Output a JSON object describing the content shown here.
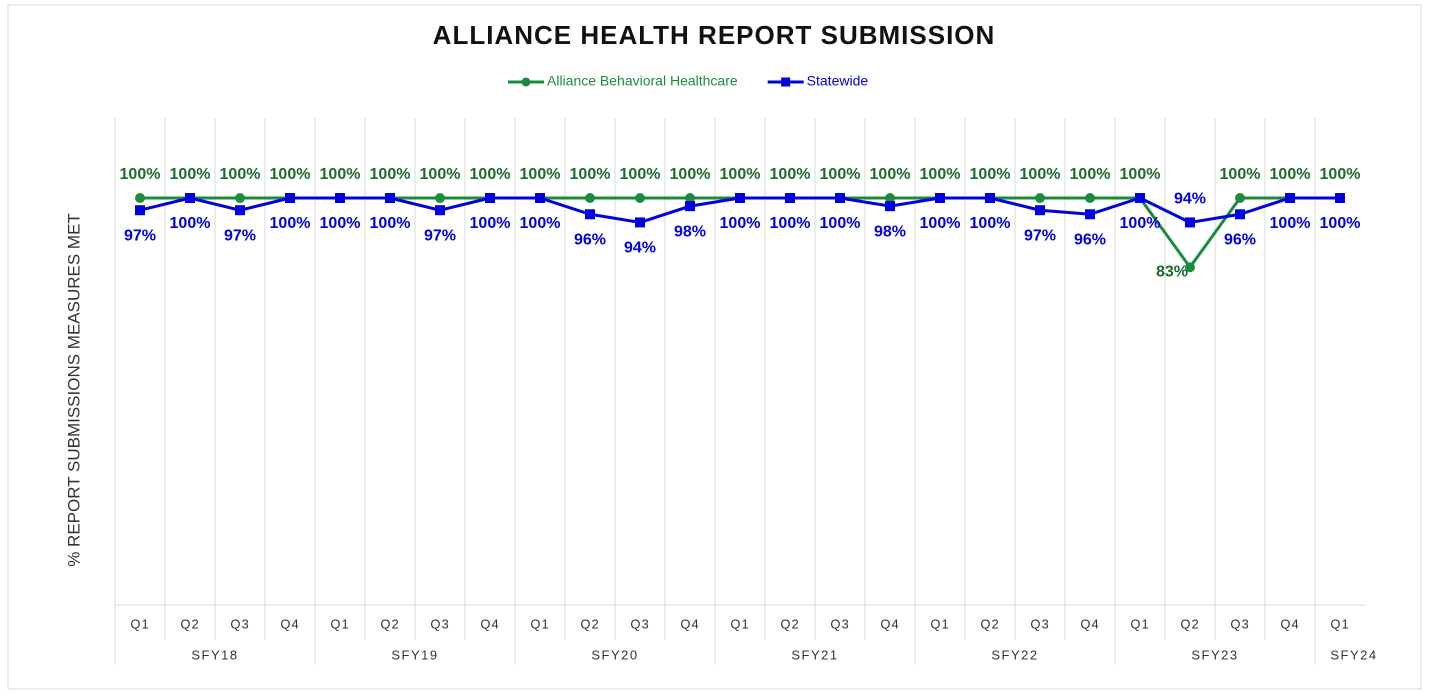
{
  "chart_data": {
    "type": "line",
    "title": "ALLIANCE HEALTH REPORT SUBMISSION",
    "y_label": "% REPORT SUBMISSIONS MEASURES MET",
    "groups": [
      {
        "name": "SFY18",
        "categories": [
          "Q1",
          "Q2",
          "Q3",
          "Q4"
        ]
      },
      {
        "name": "SFY19",
        "categories": [
          "Q1",
          "Q2",
          "Q3",
          "Q4"
        ]
      },
      {
        "name": "SFY20",
        "categories": [
          "Q1",
          "Q2",
          "Q3",
          "Q4"
        ]
      },
      {
        "name": "SFY21",
        "categories": [
          "Q1",
          "Q2",
          "Q3",
          "Q4"
        ]
      },
      {
        "name": "SFY22",
        "categories": [
          "Q1",
          "Q2",
          "Q3",
          "Q4"
        ]
      },
      {
        "name": "SFY23",
        "categories": [
          "Q1",
          "Q2",
          "Q3",
          "Q4"
        ]
      },
      {
        "name": "SFY24",
        "categories": [
          "Q1"
        ]
      }
    ],
    "ylim": [
      0,
      100
    ],
    "series": [
      {
        "name": "Alliance Behavioral Healthcare",
        "color": "#1a8c3c",
        "label_color": "#1e6b2e",
        "marker": "circle",
        "values": [
          100,
          100,
          100,
          100,
          100,
          100,
          100,
          100,
          100,
          100,
          100,
          100,
          100,
          100,
          100,
          100,
          100,
          100,
          100,
          100,
          100,
          83,
          100,
          100,
          100
        ],
        "value_labels": [
          "100%",
          "100%",
          "100%",
          "100%",
          "100%",
          "100%",
          "100%",
          "100%",
          "100%",
          "100%",
          "100%",
          "100%",
          "100%",
          "100%",
          "100%",
          "100%",
          "100%",
          "100%",
          "100%",
          "100%",
          "100%",
          "83%",
          "100%",
          "100%",
          "100%"
        ]
      },
      {
        "name": "Statewide",
        "color": "#0000e0",
        "label_color": "#0000e0",
        "marker": "square",
        "values": [
          97,
          100,
          97,
          100,
          100,
          100,
          97,
          100,
          100,
          96,
          94,
          98,
          100,
          100,
          100,
          98,
          100,
          100,
          97,
          96,
          100,
          94,
          96,
          100,
          100
        ],
        "value_labels": [
          "97%",
          "100%",
          "97%",
          "100%",
          "100%",
          "100%",
          "97%",
          "100%",
          "100%",
          "96%",
          "94%",
          "98%",
          "100%",
          "100%",
          "100%",
          "98%",
          "100%",
          "100%",
          "97%",
          "96%",
          "100%",
          "94%",
          "96%",
          "100%",
          "100%"
        ]
      }
    ]
  }
}
